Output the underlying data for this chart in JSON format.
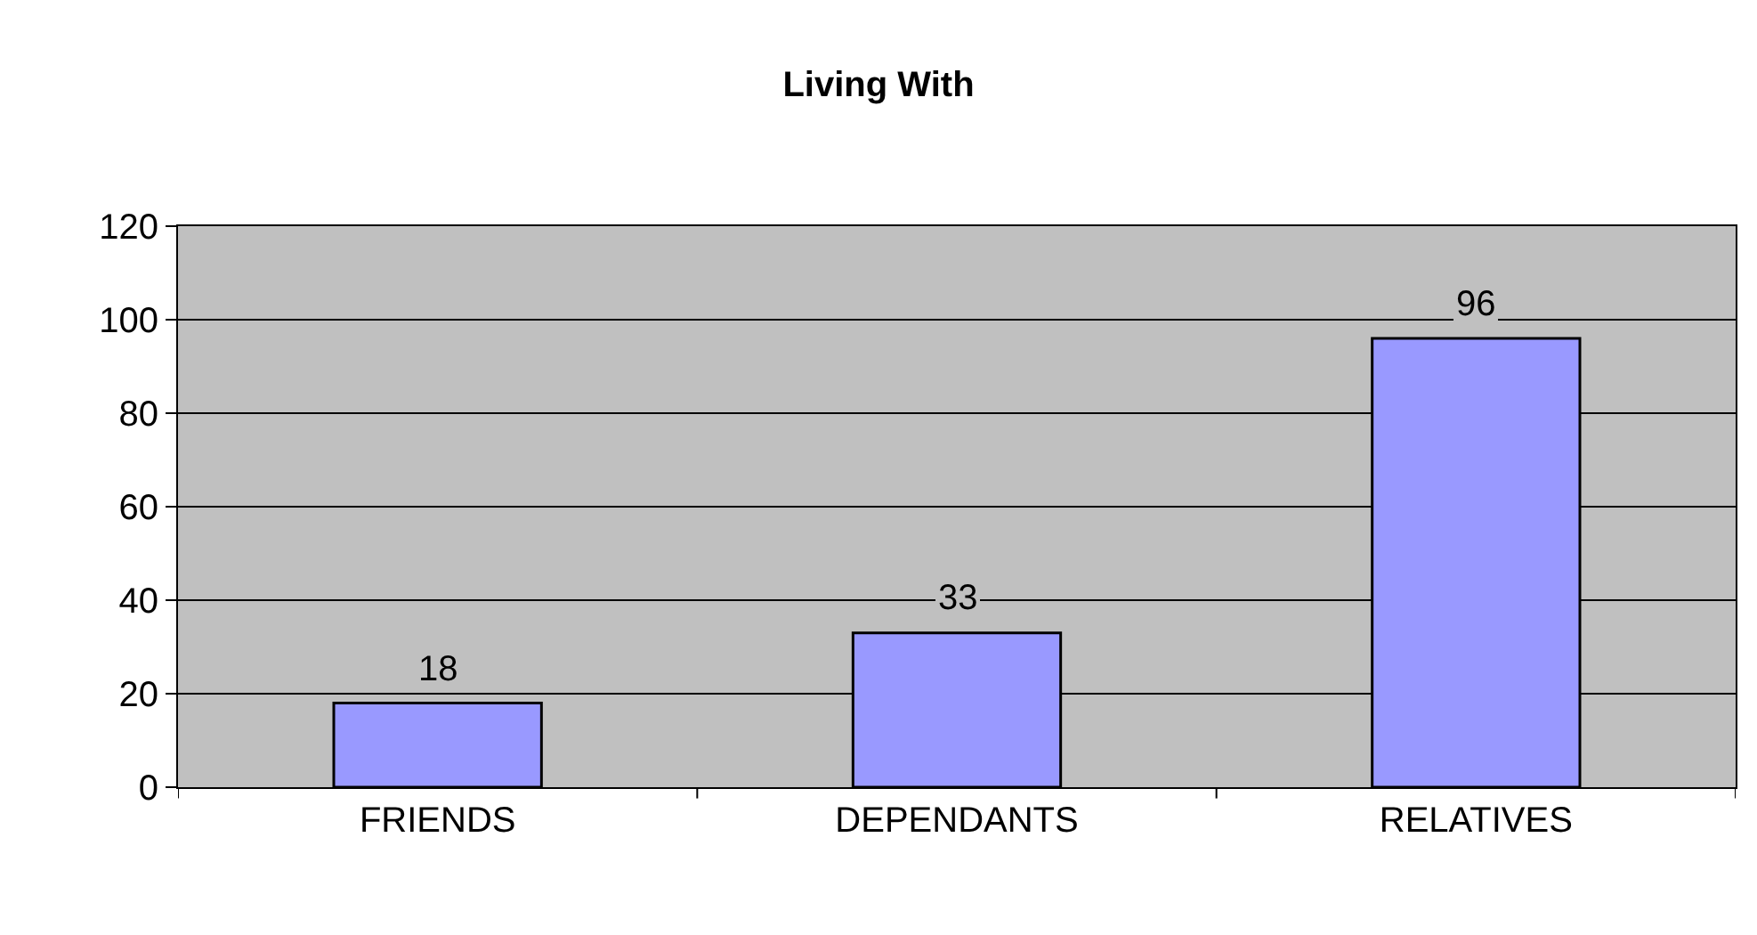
{
  "chart_data": {
    "type": "bar",
    "title": "Living With",
    "categories": [
      "FRIENDS",
      "DEPENDANTS",
      "RELATIVES"
    ],
    "values": [
      18,
      33,
      96
    ],
    "color": "#9999ff",
    "ylim": [
      0,
      120
    ],
    "yticks": [
      0,
      20,
      40,
      60,
      80,
      100,
      120
    ],
    "grid": "y",
    "data_labels": true
  }
}
